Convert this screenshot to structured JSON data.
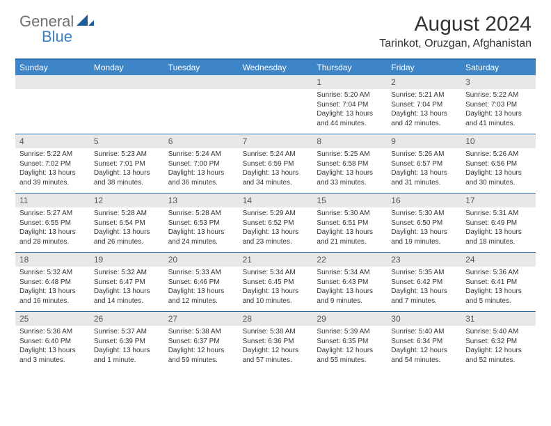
{
  "logo": {
    "text1": "General",
    "text2": "Blue"
  },
  "title": "August 2024",
  "location": "Tarinkot, Oruzgan, Afghanistan",
  "colors": {
    "header_bar": "#3d85c6",
    "header_border": "#2f6fa7",
    "numrow_bg": "#e8e8e8",
    "logo_gray": "#6e6e6e",
    "logo_blue": "#3b7fc4",
    "text": "#333333"
  },
  "weekdays": [
    "Sunday",
    "Monday",
    "Tuesday",
    "Wednesday",
    "Thursday",
    "Friday",
    "Saturday"
  ],
  "weeks": [
    {
      "nums": [
        "",
        "",
        "",
        "",
        "1",
        "2",
        "3"
      ],
      "cells": [
        null,
        null,
        null,
        null,
        {
          "sunrise": "5:20 AM",
          "sunset": "7:04 PM",
          "daylight": "13 hours and 44 minutes."
        },
        {
          "sunrise": "5:21 AM",
          "sunset": "7:04 PM",
          "daylight": "13 hours and 42 minutes."
        },
        {
          "sunrise": "5:22 AM",
          "sunset": "7:03 PM",
          "daylight": "13 hours and 41 minutes."
        }
      ]
    },
    {
      "nums": [
        "4",
        "5",
        "6",
        "7",
        "8",
        "9",
        "10"
      ],
      "cells": [
        {
          "sunrise": "5:22 AM",
          "sunset": "7:02 PM",
          "daylight": "13 hours and 39 minutes."
        },
        {
          "sunrise": "5:23 AM",
          "sunset": "7:01 PM",
          "daylight": "13 hours and 38 minutes."
        },
        {
          "sunrise": "5:24 AM",
          "sunset": "7:00 PM",
          "daylight": "13 hours and 36 minutes."
        },
        {
          "sunrise": "5:24 AM",
          "sunset": "6:59 PM",
          "daylight": "13 hours and 34 minutes."
        },
        {
          "sunrise": "5:25 AM",
          "sunset": "6:58 PM",
          "daylight": "13 hours and 33 minutes."
        },
        {
          "sunrise": "5:26 AM",
          "sunset": "6:57 PM",
          "daylight": "13 hours and 31 minutes."
        },
        {
          "sunrise": "5:26 AM",
          "sunset": "6:56 PM",
          "daylight": "13 hours and 30 minutes."
        }
      ]
    },
    {
      "nums": [
        "11",
        "12",
        "13",
        "14",
        "15",
        "16",
        "17"
      ],
      "cells": [
        {
          "sunrise": "5:27 AM",
          "sunset": "6:55 PM",
          "daylight": "13 hours and 28 minutes."
        },
        {
          "sunrise": "5:28 AM",
          "sunset": "6:54 PM",
          "daylight": "13 hours and 26 minutes."
        },
        {
          "sunrise": "5:28 AM",
          "sunset": "6:53 PM",
          "daylight": "13 hours and 24 minutes."
        },
        {
          "sunrise": "5:29 AM",
          "sunset": "6:52 PM",
          "daylight": "13 hours and 23 minutes."
        },
        {
          "sunrise": "5:30 AM",
          "sunset": "6:51 PM",
          "daylight": "13 hours and 21 minutes."
        },
        {
          "sunrise": "5:30 AM",
          "sunset": "6:50 PM",
          "daylight": "13 hours and 19 minutes."
        },
        {
          "sunrise": "5:31 AM",
          "sunset": "6:49 PM",
          "daylight": "13 hours and 18 minutes."
        }
      ]
    },
    {
      "nums": [
        "18",
        "19",
        "20",
        "21",
        "22",
        "23",
        "24"
      ],
      "cells": [
        {
          "sunrise": "5:32 AM",
          "sunset": "6:48 PM",
          "daylight": "13 hours and 16 minutes."
        },
        {
          "sunrise": "5:32 AM",
          "sunset": "6:47 PM",
          "daylight": "13 hours and 14 minutes."
        },
        {
          "sunrise": "5:33 AM",
          "sunset": "6:46 PM",
          "daylight": "13 hours and 12 minutes."
        },
        {
          "sunrise": "5:34 AM",
          "sunset": "6:45 PM",
          "daylight": "13 hours and 10 minutes."
        },
        {
          "sunrise": "5:34 AM",
          "sunset": "6:43 PM",
          "daylight": "13 hours and 9 minutes."
        },
        {
          "sunrise": "5:35 AM",
          "sunset": "6:42 PM",
          "daylight": "13 hours and 7 minutes."
        },
        {
          "sunrise": "5:36 AM",
          "sunset": "6:41 PM",
          "daylight": "13 hours and 5 minutes."
        }
      ]
    },
    {
      "nums": [
        "25",
        "26",
        "27",
        "28",
        "29",
        "30",
        "31"
      ],
      "cells": [
        {
          "sunrise": "5:36 AM",
          "sunset": "6:40 PM",
          "daylight": "13 hours and 3 minutes."
        },
        {
          "sunrise": "5:37 AM",
          "sunset": "6:39 PM",
          "daylight": "13 hours and 1 minute."
        },
        {
          "sunrise": "5:38 AM",
          "sunset": "6:37 PM",
          "daylight": "12 hours and 59 minutes."
        },
        {
          "sunrise": "5:38 AM",
          "sunset": "6:36 PM",
          "daylight": "12 hours and 57 minutes."
        },
        {
          "sunrise": "5:39 AM",
          "sunset": "6:35 PM",
          "daylight": "12 hours and 55 minutes."
        },
        {
          "sunrise": "5:40 AM",
          "sunset": "6:34 PM",
          "daylight": "12 hours and 54 minutes."
        },
        {
          "sunrise": "5:40 AM",
          "sunset": "6:32 PM",
          "daylight": "12 hours and 52 minutes."
        }
      ]
    }
  ],
  "labels": {
    "sunrise": "Sunrise: ",
    "sunset": "Sunset: ",
    "daylight": "Daylight: "
  }
}
